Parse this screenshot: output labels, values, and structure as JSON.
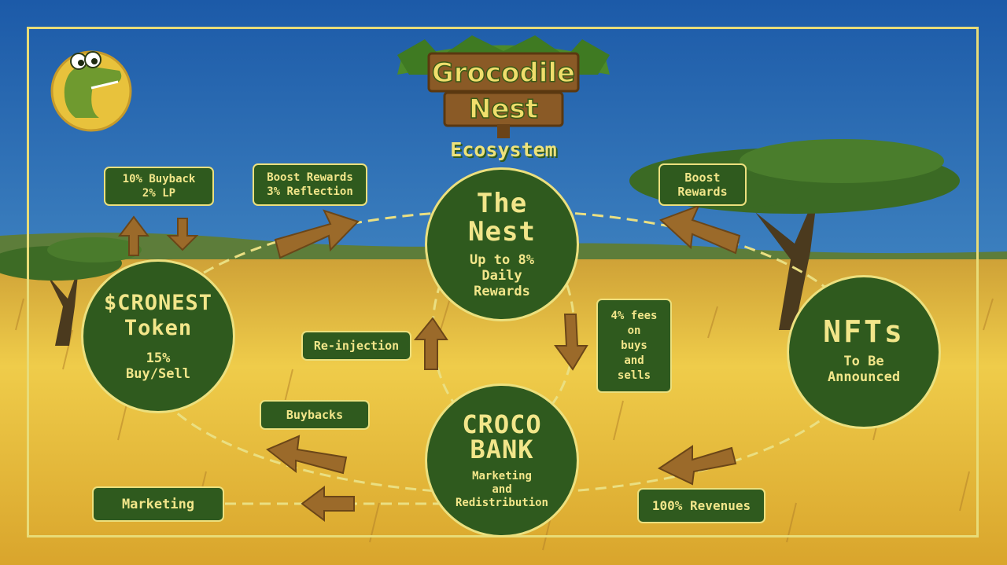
{
  "title": {
    "line1": "Grocodile",
    "line2": "Nest",
    "subtitle": "Ecosystem"
  },
  "nodes": {
    "nest": {
      "title1": "The",
      "title2": "Nest",
      "desc1": "Up to 8%",
      "desc2": "Daily",
      "desc3": "Rewards"
    },
    "token": {
      "title1": "$CRONEST",
      "title2": "Token",
      "desc1": "15%",
      "desc2": "Buy/Sell"
    },
    "nfts": {
      "title1": "NFTs",
      "desc1": "To Be",
      "desc2": "Announced"
    },
    "bank": {
      "title1": "CROCO",
      "title2": "BANK",
      "desc1": "Marketing",
      "desc2": "and",
      "desc3": "Redistribution"
    }
  },
  "labels": {
    "buyback_lp": {
      "line1": "10% Buyback",
      "line2": "2% LP"
    },
    "boost_reflection": {
      "line1": "Boost Rewards",
      "line2": "3% Reflection"
    },
    "boost_rewards": {
      "line1": "Boost",
      "line2": "Rewards"
    },
    "reinjection": "Re-injection",
    "fees": {
      "line1": "4% fees",
      "line2": "on",
      "line3": "buys",
      "line4": "and",
      "line5": "sells"
    },
    "buybacks": "Buybacks",
    "marketing": "Marketing",
    "revenues": "100% Revenues"
  },
  "colors": {
    "node_fill": "#2f5a1e",
    "node_border": "#ece07e",
    "text": "#f2e68a",
    "arrow": "#9b6a2a",
    "sky_top": "#1f5fae",
    "sky_bottom": "#5fa8d8",
    "grass": "#e7bf3a"
  },
  "icons": {
    "logo": "crocodile-mascot-icon",
    "sign": "wooden-sign-icon"
  }
}
